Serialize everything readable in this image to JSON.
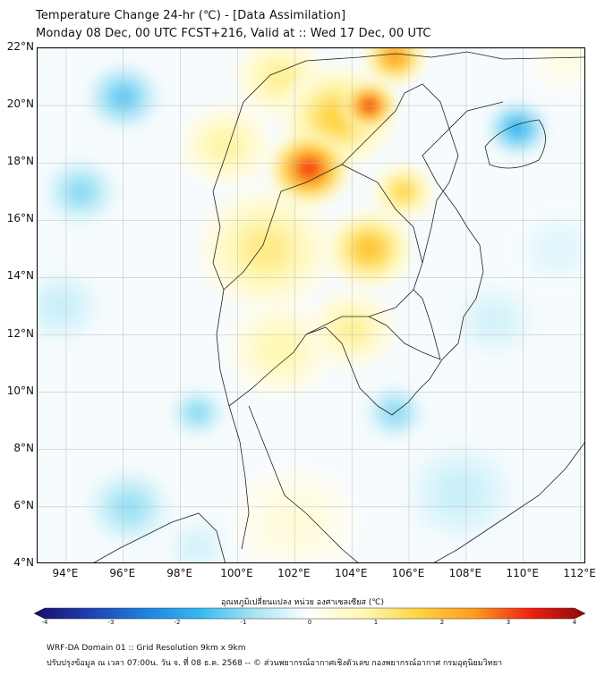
{
  "header": {
    "title": "Temperature Change 24-hr (℃) - [Data Assimilation]",
    "subtitle": "Monday 08 Dec, 00 UTC FCST+216, Valid at :: Wed 17 Dec, 00 UTC"
  },
  "map": {
    "lat_labels": [
      "22°N",
      "20°N",
      "18°N",
      "16°N",
      "14°N",
      "12°N",
      "10°N",
      "8°N",
      "6°N",
      "4°N"
    ],
    "lon_labels": [
      "94°E",
      "96°E",
      "98°E",
      "100°E",
      "102°E",
      "104°E",
      "106°E",
      "108°E",
      "110°E",
      "112°E"
    ],
    "lat_range": [
      4,
      22
    ],
    "lon_range": [
      93,
      112.2
    ],
    "field": [
      {
        "lon": 102.5,
        "lat": 17.8,
        "value": 3.0,
        "spread": 1.3
      },
      {
        "lon": 104.6,
        "lat": 20.0,
        "value": 3.0,
        "spread": 0.9
      },
      {
        "lon": 105.5,
        "lat": 21.7,
        "value": 2.3,
        "spread": 1.0
      },
      {
        "lon": 103.5,
        "lat": 19.6,
        "value": 1.6,
        "spread": 1.8
      },
      {
        "lon": 104.6,
        "lat": 15.0,
        "value": 1.8,
        "spread": 1.4
      },
      {
        "lon": 101.0,
        "lat": 15.0,
        "value": 1.1,
        "spread": 2.2
      },
      {
        "lon": 105.8,
        "lat": 17.0,
        "value": 1.5,
        "spread": 1.0
      },
      {
        "lon": 99.6,
        "lat": 18.6,
        "value": 0.9,
        "spread": 1.5
      },
      {
        "lon": 101.5,
        "lat": 11.5,
        "value": 0.8,
        "spread": 1.7
      },
      {
        "lon": 104.0,
        "lat": 12.2,
        "value": 1.0,
        "spread": 1.4
      },
      {
        "lon": 101.5,
        "lat": 21.0,
        "value": 1.0,
        "spread": 1.5
      },
      {
        "lon": 102.0,
        "lat": 5.5,
        "value": 0.4,
        "spread": 2.0
      },
      {
        "lon": 96.0,
        "lat": 20.3,
        "value": -1.3,
        "spread": 1.2
      },
      {
        "lon": 109.8,
        "lat": 19.2,
        "value": -1.6,
        "spread": 1.0
      },
      {
        "lon": 94.5,
        "lat": 17.0,
        "value": -1.0,
        "spread": 1.2
      },
      {
        "lon": 98.6,
        "lat": 9.3,
        "value": -1.0,
        "spread": 0.9
      },
      {
        "lon": 105.5,
        "lat": 9.3,
        "value": -1.0,
        "spread": 1.0
      },
      {
        "lon": 96.2,
        "lat": 6.0,
        "value": -0.9,
        "spread": 1.4
      },
      {
        "lon": 107.8,
        "lat": 6.5,
        "value": -0.5,
        "spread": 2.0
      },
      {
        "lon": 109.0,
        "lat": 12.5,
        "value": -0.4,
        "spread": 1.6
      },
      {
        "lon": 93.8,
        "lat": 13.0,
        "value": -0.5,
        "spread": 1.5
      },
      {
        "lon": 111.2,
        "lat": 15.0,
        "value": -0.3,
        "spread": 1.6
      },
      {
        "lon": 98.6,
        "lat": 4.6,
        "value": -0.4,
        "spread": 1.2
      },
      {
        "lon": 111.5,
        "lat": 21.6,
        "value": 0.3,
        "spread": 1.2
      }
    ]
  },
  "colorbar": {
    "title": "อุณหภูมิเปลี่ยนแปลง หน่วย องศาเซลเซียส (℃)",
    "min": -4,
    "max": 4,
    "ticks": [
      "-4",
      "-3",
      "-2",
      "-1",
      "0",
      "1",
      "2",
      "3",
      "4"
    ],
    "stops": [
      "#1a0a6e",
      "#1f3fb0",
      "#1f7fe0",
      "#35b8f0",
      "#a8e4f5",
      "#ffffff",
      "#fff7b0",
      "#ffd23f",
      "#ff9a1f",
      "#f02010",
      "#8a0a0a"
    ]
  },
  "footer": {
    "line1": "WRF-DA Domain 01 :: Grid Resolution 9km x 9km",
    "line2": "ปรับปรุงข้อมูล ณ เวลา 07:00น. วัน จ. ที่ 08 ธ.ค. 2568 -- © ส่วนพยากรณ์อากาศเชิงตัวเลข กองพยากรณ์อากาศ กรมอุตุนิยมวิทยา"
  }
}
